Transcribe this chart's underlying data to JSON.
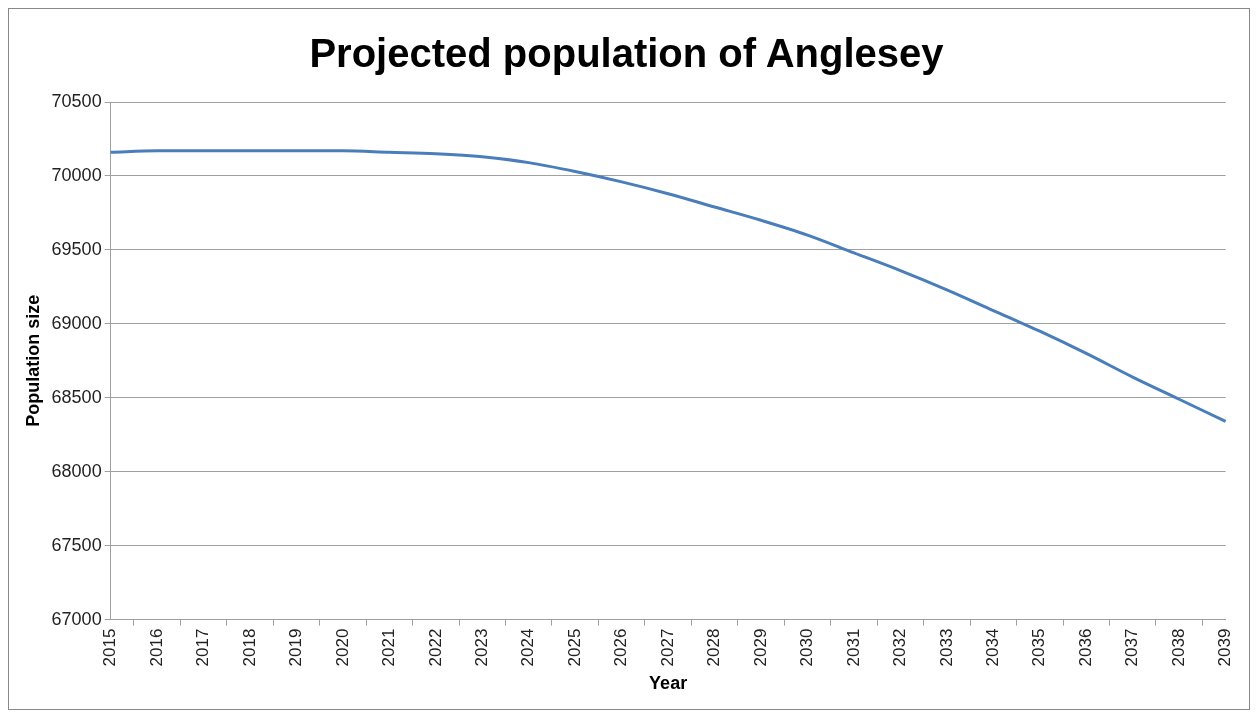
{
  "chart_data": {
    "type": "line",
    "title": "Projected population of Anglesey",
    "xlabel": "Year",
    "ylabel": "Population size",
    "categories": [
      "2015",
      "2016",
      "2017",
      "2018",
      "2019",
      "2020",
      "2021",
      "2022",
      "2023",
      "2024",
      "2025",
      "2026",
      "2027",
      "2028",
      "2029",
      "2030",
      "2031",
      "2032",
      "2033",
      "2034",
      "2035",
      "2036",
      "2037",
      "2038",
      "2039"
    ],
    "series": [
      {
        "color": "#4a7ebb",
        "values": [
          70160,
          70170,
          70170,
          70170,
          70170,
          70170,
          70160,
          70150,
          70130,
          70090,
          70030,
          69960,
          69880,
          69790,
          69700,
          69600,
          69480,
          69360,
          69230,
          69090,
          68950,
          68800,
          68640,
          68490,
          68340
        ]
      }
    ],
    "ylim": [
      67000,
      70500
    ],
    "yticks": [
      67000,
      67500,
      68000,
      68500,
      69000,
      69500,
      70000,
      70500
    ],
    "grid": "y",
    "legend": false,
    "marker": "none",
    "line_style": "solid"
  }
}
